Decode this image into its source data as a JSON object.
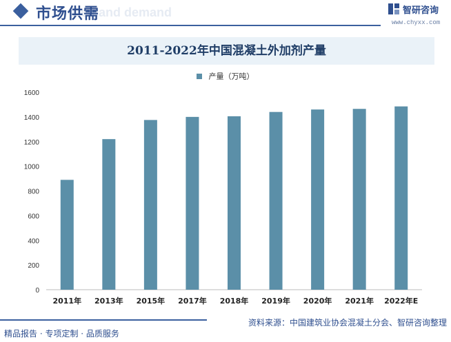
{
  "header": {
    "section_title": "市场供需",
    "ghost_text": "Demand demand",
    "brand_name": "智研咨询",
    "brand_url": "www.chyxx.com"
  },
  "footer": {
    "left": "精品报告 · 专项定制 · 品质服务",
    "right": "资料来源：中国建筑业协会混凝土分会、智研咨询整理"
  },
  "watermark": "智研咨询",
  "colors": {
    "bar": "#5b8fa8",
    "accent": "#3a5f9e"
  },
  "chart_data": {
    "type": "bar",
    "title": "2011-2022年中国混凝土外加剂产量",
    "xlabel": "",
    "ylabel": "",
    "categories": [
      "2011年",
      "2013年",
      "2015年",
      "2017年",
      "2018年",
      "2019年",
      "2020年",
      "2021年",
      "2022年E"
    ],
    "series": [
      {
        "name": "产量（万吨）",
        "values": [
          890,
          1220,
          1375,
          1400,
          1405,
          1440,
          1460,
          1465,
          1485
        ]
      }
    ],
    "ylim": [
      0,
      1600
    ],
    "yticks": [
      0,
      200,
      400,
      600,
      800,
      1000,
      1200,
      1400,
      1600
    ],
    "legend_position": "top-center",
    "grid": false
  }
}
